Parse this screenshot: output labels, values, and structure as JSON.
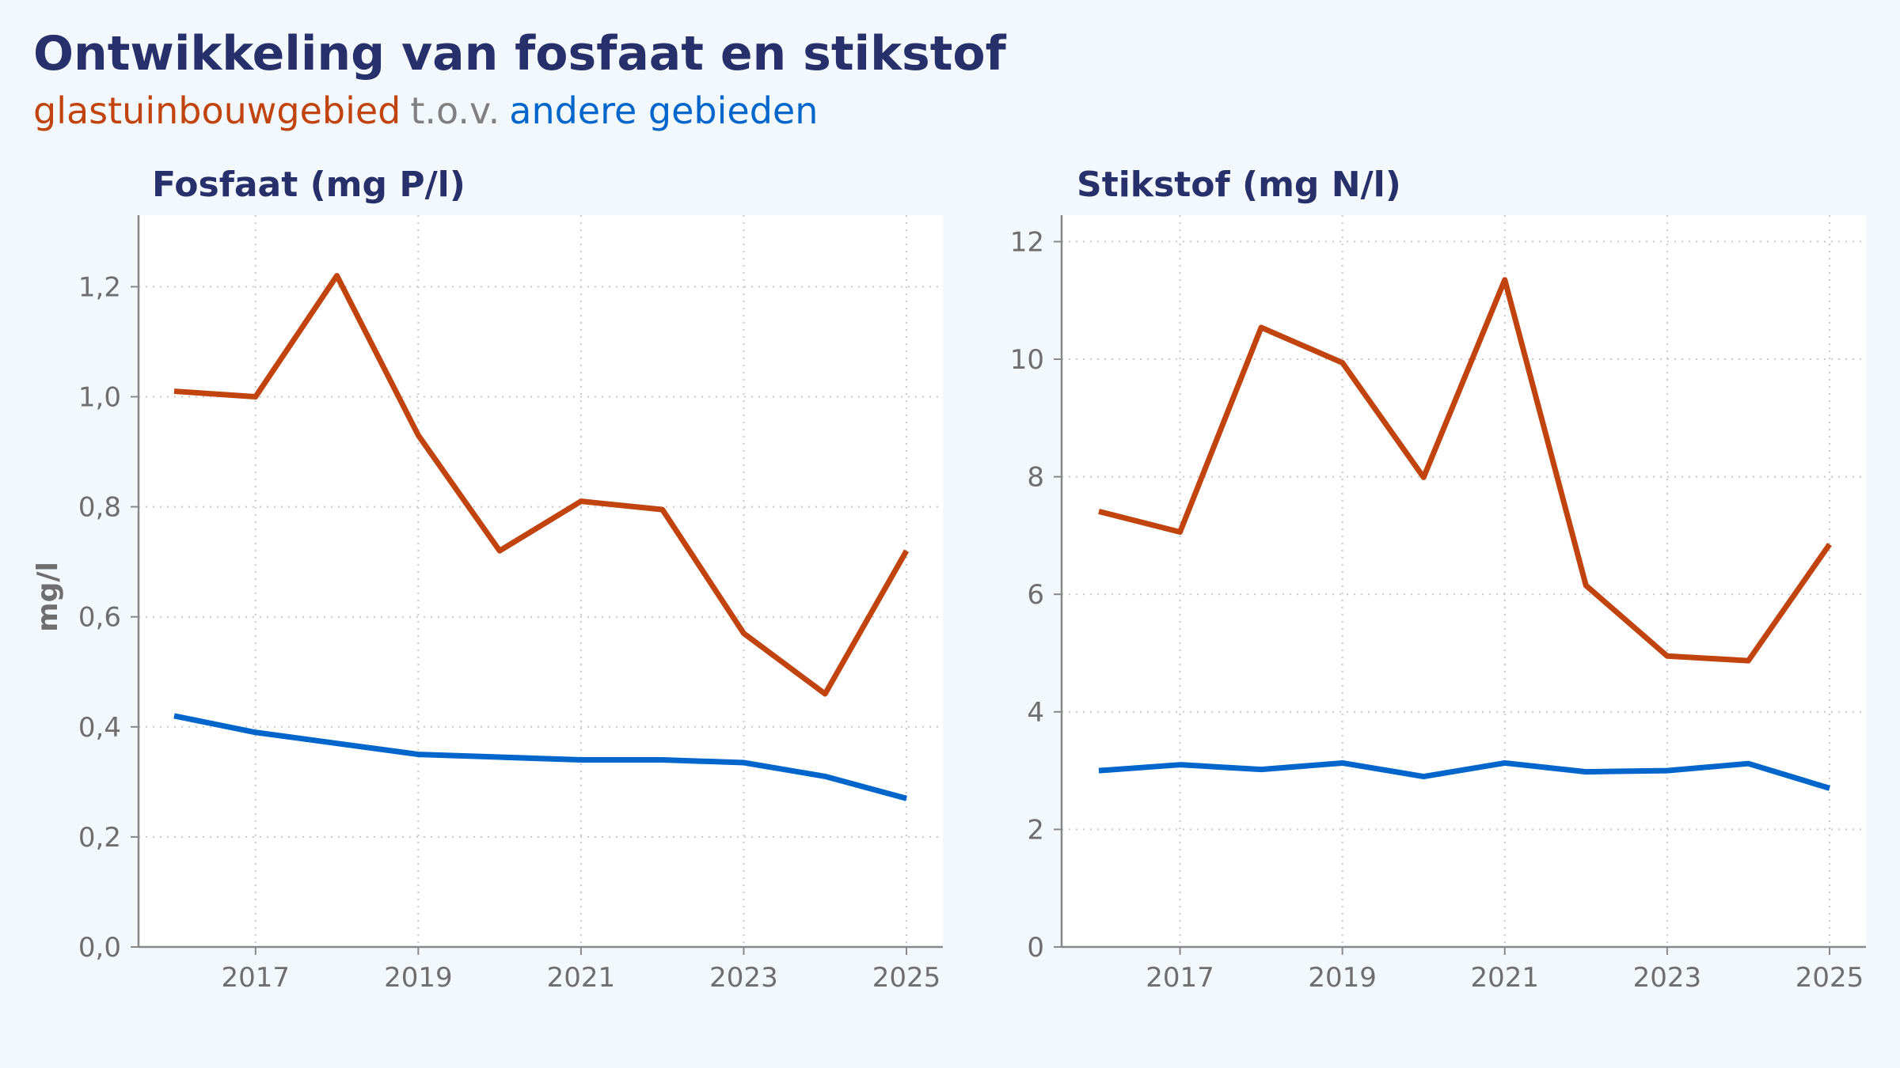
{
  "header": {
    "title": "Ontwikkeling van fosfaat en stikstof",
    "subtitle_part1": "glastuinbouwgebied",
    "subtitle_part2": "t.o.v.",
    "subtitle_part3": "andere gebieden"
  },
  "colors": {
    "glastuinbouwgebied": "#c1440e",
    "andere_gebieden": "#0066cc",
    "title": "#27306b"
  },
  "chart_data": [
    {
      "type": "line",
      "title": "Fosfaat (mg P/l)",
      "ylabel": "mg/l",
      "xlabel": "",
      "x": [
        2016,
        2017,
        2018,
        2019,
        2020,
        2021,
        2022,
        2023,
        2024,
        2025
      ],
      "xticks": [
        "2017",
        "2019",
        "2021",
        "2023",
        "2025"
      ],
      "yticks": [
        "0,0",
        "0,2",
        "0,4",
        "0,6",
        "0,8",
        "1,0",
        "1,2"
      ],
      "ylim": [
        0,
        1.33
      ],
      "grid": true,
      "series": [
        {
          "color": "#c1440e",
          "values": [
            1.01,
            1.0,
            1.22,
            0.93,
            0.72,
            0.81,
            0.795,
            0.57,
            0.46,
            0.72
          ]
        },
        {
          "color": "#0066cc",
          "values": [
            0.42,
            0.39,
            0.37,
            0.35,
            0.345,
            0.34,
            0.34,
            0.335,
            0.31,
            0.27
          ]
        }
      ]
    },
    {
      "type": "line",
      "title": "Stikstof (mg N/l)",
      "ylabel": "",
      "xlabel": "",
      "x": [
        2016,
        2017,
        2018,
        2019,
        2020,
        2021,
        2022,
        2023,
        2024,
        2025
      ],
      "xticks": [
        "2017",
        "2019",
        "2021",
        "2023",
        "2025"
      ],
      "yticks": [
        "0",
        "2",
        "4",
        "6",
        "8",
        "10",
        "12"
      ],
      "ylim": [
        0,
        12.45
      ],
      "grid": true,
      "series": [
        {
          "color": "#c1440e",
          "values": [
            7.41,
            7.06,
            10.54,
            9.94,
            7.99,
            11.35,
            6.15,
            4.95,
            4.87,
            6.85
          ]
        },
        {
          "color": "#0066cc",
          "values": [
            3.0,
            3.1,
            3.02,
            3.13,
            2.9,
            3.13,
            2.98,
            3.0,
            3.12,
            2.7
          ]
        }
      ]
    }
  ]
}
